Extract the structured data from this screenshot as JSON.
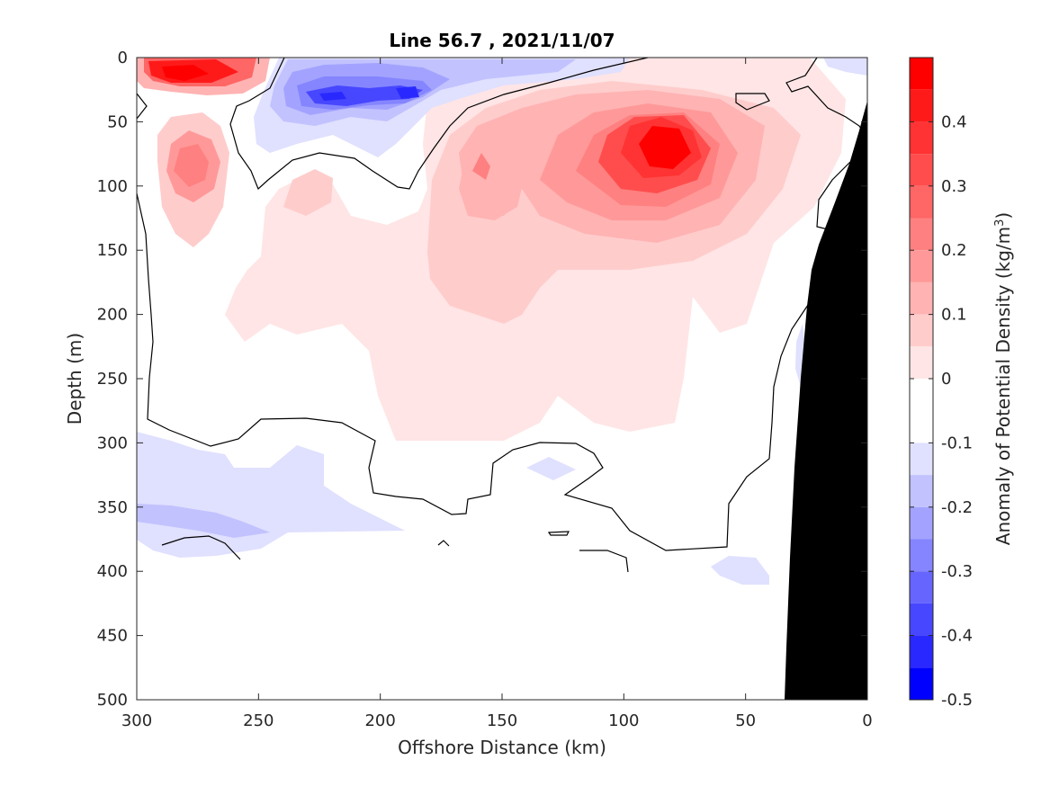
{
  "chart_data": {
    "type": "heatmap",
    "title": "Line 56.7 , 2021/11/07",
    "xlabel": "Offshore Distance (km)",
    "ylabel": "Depth (m)",
    "colorbar_label_main": "Anomaly of Potential Density (kg/m",
    "colorbar_label_sup": "3",
    "colorbar_label_end": ")",
    "xlim": [
      300,
      0
    ],
    "ylim": [
      0,
      500
    ],
    "x_reversed": true,
    "y_reversed": true,
    "x_ticks": [
      300,
      250,
      200,
      150,
      100,
      50,
      0
    ],
    "x_tick_labels": [
      "300",
      "250",
      "200",
      "150",
      "100",
      "50",
      "0"
    ],
    "y_ticks": [
      0,
      50,
      100,
      150,
      200,
      250,
      300,
      350,
      400,
      450,
      500
    ],
    "y_tick_labels": [
      "0",
      "50",
      "100",
      "150",
      "200",
      "250",
      "300",
      "350",
      "400",
      "450",
      "500"
    ],
    "colorbar_range": [
      -0.5,
      0.5
    ],
    "colorbar_ticks": [
      0.4,
      0.3,
      0.2,
      0.1,
      0,
      -0.1,
      -0.2,
      -0.3,
      -0.4,
      -0.5
    ],
    "colorbar_tick_labels": [
      "0.4",
      "0.3",
      "0.2",
      "0.1",
      "0",
      "-0.1",
      "-0.2",
      "-0.3",
      "-0.4",
      "-0.5"
    ],
    "colorbar_levels": [
      {
        "from": 0.45,
        "to": 0.5,
        "color": "#ff0000"
      },
      {
        "from": 0.4,
        "to": 0.45,
        "color": "#ff1a1a"
      },
      {
        "from": 0.35,
        "to": 0.4,
        "color": "#ff3333"
      },
      {
        "from": 0.3,
        "to": 0.35,
        "color": "#ff4d4d"
      },
      {
        "from": 0.25,
        "to": 0.3,
        "color": "#ff6666"
      },
      {
        "from": 0.2,
        "to": 0.25,
        "color": "#ff8080"
      },
      {
        "from": 0.15,
        "to": 0.2,
        "color": "#ff9999"
      },
      {
        "from": 0.1,
        "to": 0.15,
        "color": "#ffb3b3"
      },
      {
        "from": 0.05,
        "to": 0.1,
        "color": "#ffcccc"
      },
      {
        "from": 0.0,
        "to": 0.05,
        "color": "#ffe5e5"
      },
      {
        "from": -0.05,
        "to": 0.0,
        "color": "#ffffff"
      },
      {
        "from": -0.1,
        "to": -0.05,
        "color": "#ffffff"
      },
      {
        "from": -0.15,
        "to": -0.1,
        "color": "#e0e0ff"
      },
      {
        "from": -0.2,
        "to": -0.15,
        "color": "#c2c2ff"
      },
      {
        "from": -0.25,
        "to": -0.2,
        "color": "#a3a3ff"
      },
      {
        "from": -0.3,
        "to": -0.25,
        "color": "#8585ff"
      },
      {
        "from": -0.35,
        "to": -0.3,
        "color": "#6666ff"
      },
      {
        "from": -0.4,
        "to": -0.35,
        "color": "#4747ff"
      },
      {
        "from": -0.45,
        "to": -0.4,
        "color": "#2929ff"
      },
      {
        "from": -0.5,
        "to": -0.45,
        "color": "#0000ff"
      }
    ],
    "features": [
      {
        "name": "strong-positive-core",
        "x_km": 85,
        "depth_m": 60,
        "value": 0.45
      },
      {
        "name": "surface-positive-offshore",
        "x_km": 282,
        "depth_m": 15,
        "value": 0.4
      },
      {
        "name": "subsurface-positive-offshore",
        "x_km": 275,
        "depth_m": 75,
        "value": 0.25
      },
      {
        "name": "positive-lobe-160km",
        "x_km": 160,
        "depth_m": 90,
        "value": 0.2
      },
      {
        "name": "negative-core",
        "x_km": 225,
        "depth_m": 30,
        "value": -0.4
      },
      {
        "name": "negative-core-2",
        "x_km": 190,
        "depth_m": 28,
        "value": -0.4
      },
      {
        "name": "deep-negative-patch",
        "x_km": 280,
        "depth_m": 360,
        "value": -0.15
      }
    ],
    "bathymetry_label": "",
    "grid": false,
    "legend": "colorbar-right"
  },
  "colors": {
    "axis": "#262626",
    "contour_zero": "#000000",
    "bathymetry": "#000000",
    "background": "#ffffff"
  }
}
